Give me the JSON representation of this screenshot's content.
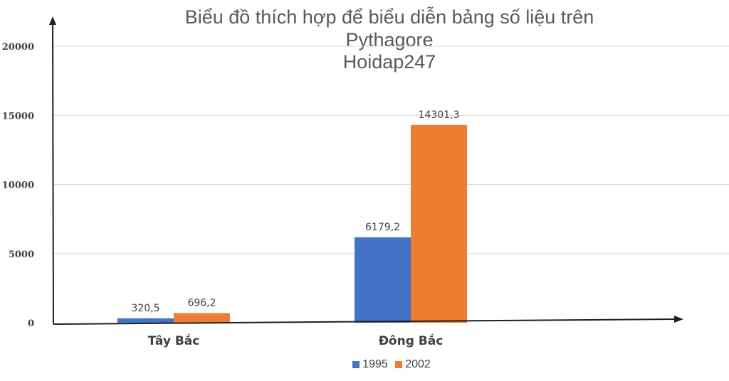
{
  "chart_data": {
    "type": "bar",
    "title_lines": [
      "Biểu đồ thích hợp để biểu diễn bảng số liệu trên",
      "Pythagore",
      "Hoidap247"
    ],
    "xlabel": "",
    "ylabel": "",
    "categories": [
      "Tây Bắc",
      "Đông Bắc"
    ],
    "series": [
      {
        "name": "1995",
        "color": "#4472C4",
        "values": [
          320.5,
          6179.2
        ],
        "labels": [
          "320,5",
          "6179,2"
        ]
      },
      {
        "name": "2002",
        "color": "#ED7D31",
        "values": [
          696.2,
          14301.3
        ],
        "labels": [
          "696,2",
          "14301,3"
        ]
      }
    ],
    "ylim": [
      0,
      20000
    ],
    "y_ticks": [
      0,
      5000,
      10000,
      15000,
      20000
    ],
    "grid": true,
    "legend_position": "bottom"
  }
}
